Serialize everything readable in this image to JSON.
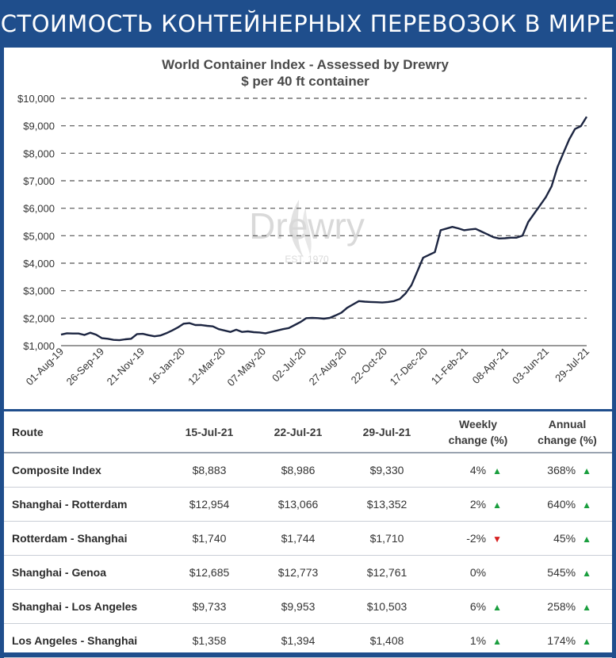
{
  "banner": {
    "title": "СТОИМОСТЬ КОНТЕЙНЕРНЫХ ПЕРЕВОЗОК В МИРЕ"
  },
  "colors": {
    "banner": "#1f4e8c",
    "line": "#1c2541",
    "up": "#1a9e3e",
    "down": "#d61f1f"
  },
  "watermark": {
    "brand": "Drewry",
    "est": "EST. 1970"
  },
  "chart_data": {
    "type": "line",
    "title": "World Container Index - Assessed by Drewry",
    "subtitle": "$ per 40 ft container",
    "ylim": [
      1000,
      10000
    ],
    "yticks": [
      1000,
      2000,
      3000,
      4000,
      5000,
      6000,
      7000,
      8000,
      9000,
      10000
    ],
    "ytick_labels": [
      "$1,000",
      "$2,000",
      "$3,000",
      "$4,000",
      "$5,000",
      "$6,000",
      "$7,000",
      "$8,000",
      "$9,000",
      "$10,000"
    ],
    "grid": "horizontal dashed",
    "x_ticks": [
      "01-Aug-19",
      "26-Sep-19",
      "21-Nov-19",
      "16-Jan-20",
      "12-Mar-20",
      "07-May-20",
      "02-Jul-20",
      "27-Aug-20",
      "22-Oct-20",
      "17-Dec-20",
      "11-Feb-21",
      "08-Apr-21",
      "03-Jun-21",
      "29-Jul-21"
    ],
    "series": [
      {
        "values": [
          1400,
          1450,
          1440,
          1440,
          1390,
          1470,
          1400,
          1270,
          1250,
          1210,
          1200,
          1230,
          1250,
          1420,
          1430,
          1380,
          1340,
          1370,
          1450,
          1550,
          1660,
          1800,
          1820,
          1750,
          1750,
          1720,
          1700,
          1600,
          1550,
          1500,
          1580,
          1500,
          1520,
          1490,
          1480,
          1450,
          1500,
          1550,
          1600,
          1640,
          1750,
          1860,
          2000,
          2010,
          2000,
          1980,
          2010,
          2100,
          2200,
          2380,
          2500,
          2620,
          2600,
          2590,
          2580,
          2570,
          2590,
          2620,
          2700,
          2900,
          3200,
          3700,
          4200,
          4300,
          4400,
          5200,
          5260,
          5320,
          5270,
          5200,
          5230,
          5250,
          5150,
          5050,
          4950,
          4900,
          4910,
          4930,
          4930,
          5000,
          5500,
          5800,
          6100,
          6400,
          6800,
          7500,
          8000,
          8500,
          8883,
          8986,
          9330
        ]
      }
    ]
  },
  "table": {
    "headers": [
      "Route",
      "15-Jul-21",
      "22-Jul-21",
      "29-Jul-21",
      "Weekly change (%)",
      "Annual change (%)"
    ],
    "rows": [
      {
        "route": "Composite Index",
        "jul15": "$8,883",
        "jul22": "$8,986",
        "jul29": "$9,330",
        "weekly": "4%",
        "weekly_dir": "up",
        "annual": "368%",
        "annual_dir": "up"
      },
      {
        "route": "Shanghai - Rotterdam",
        "jul15": "$12,954",
        "jul22": "$13,066",
        "jul29": "$13,352",
        "weekly": "2%",
        "weekly_dir": "up",
        "annual": "640%",
        "annual_dir": "up"
      },
      {
        "route": "Rotterdam - Shanghai",
        "jul15": "$1,740",
        "jul22": "$1,744",
        "jul29": "$1,710",
        "weekly": "-2%",
        "weekly_dir": "down",
        "annual": "45%",
        "annual_dir": "up"
      },
      {
        "route": "Shanghai - Genoa",
        "jul15": "$12,685",
        "jul22": "$12,773",
        "jul29": "$12,761",
        "weekly": "0%",
        "weekly_dir": "none",
        "annual": "545%",
        "annual_dir": "up"
      },
      {
        "route": "Shanghai - Los Angeles",
        "jul15": "$9,733",
        "jul22": "$9,953",
        "jul29": "$10,503",
        "weekly": "6%",
        "weekly_dir": "up",
        "annual": "258%",
        "annual_dir": "up"
      },
      {
        "route": "Los Angeles - Shanghai",
        "jul15": "$1,358",
        "jul22": "$1,394",
        "jul29": "$1,408",
        "weekly": "1%",
        "weekly_dir": "up",
        "annual": "174%",
        "annual_dir": "up"
      }
    ]
  }
}
